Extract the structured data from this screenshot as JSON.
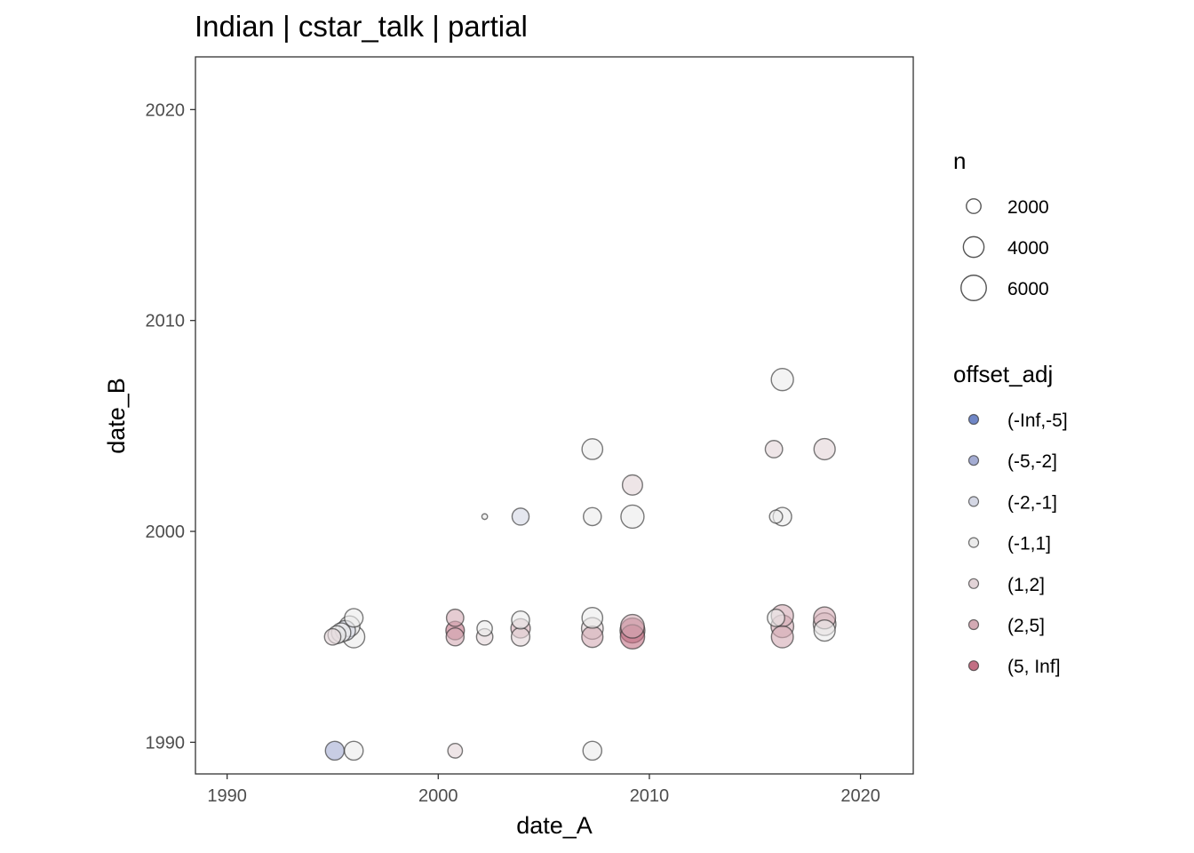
{
  "chart_data": {
    "type": "scatter",
    "title": "Indian | cstar_talk | partial",
    "xlabel": "date_A",
    "ylabel": "date_B",
    "xlim": [
      1988.5,
      2022.5
    ],
    "ylim": [
      1988.5,
      2022.5
    ],
    "x_ticks": [
      "1990",
      "2000",
      "2010",
      "2020"
    ],
    "y_ticks": [
      "1990",
      "2000",
      "2010",
      "2020"
    ],
    "grid": false,
    "legend_position": "right",
    "size_legend": {
      "title": "n",
      "entries": [
        {
          "label": "2000",
          "n": 2000
        },
        {
          "label": "4000",
          "n": 4000
        },
        {
          "label": "6000",
          "n": 6000
        }
      ]
    },
    "color_legend": {
      "title": "offset_adj",
      "entries": [
        {
          "label": "(-Inf,-5]",
          "color": "#6f86c6"
        },
        {
          "label": "(-5,-2]",
          "color": "#a4acd2"
        },
        {
          "label": "(-2,-1]",
          "color": "#d4d7e4"
        },
        {
          "label": "(-1,1]",
          "color": "#ebebeb"
        },
        {
          "label": "(1,2]",
          "color": "#e2d3d7"
        },
        {
          "label": "(2,5]",
          "color": "#d3aab4"
        },
        {
          "label": "(5, Inf]",
          "color": "#c26f84"
        }
      ]
    },
    "points": [
      {
        "x": 1995.1,
        "y": 1989.6,
        "n": 3300,
        "offset": "(-5,-2]"
      },
      {
        "x": 1996.0,
        "y": 1989.6,
        "n": 3300,
        "offset": "(-1,1]"
      },
      {
        "x": 2000.8,
        "y": 1989.6,
        "n": 2000,
        "offset": "(1,2]"
      },
      {
        "x": 2007.3,
        "y": 1989.6,
        "n": 3300,
        "offset": "(-1,1]"
      },
      {
        "x": 1995.0,
        "y": 1995.0,
        "n": 2500,
        "offset": "(1,2]"
      },
      {
        "x": 1995.2,
        "y": 1995.1,
        "n": 3000,
        "offset": "(-1,1]"
      },
      {
        "x": 1995.4,
        "y": 1995.2,
        "n": 3500,
        "offset": "(-1,1]"
      },
      {
        "x": 1995.6,
        "y": 1995.3,
        "n": 3800,
        "offset": "(-2,-1]"
      },
      {
        "x": 1995.8,
        "y": 1995.5,
        "n": 4000,
        "offset": "(-1,1]"
      },
      {
        "x": 1996.0,
        "y": 1995.0,
        "n": 4500,
        "offset": "(-1,1]"
      },
      {
        "x": 1996.0,
        "y": 1995.9,
        "n": 3200,
        "offset": "(-1,1]"
      },
      {
        "x": 2000.8,
        "y": 1995.0,
        "n": 3000,
        "offset": "(2,5]"
      },
      {
        "x": 2000.8,
        "y": 1995.3,
        "n": 3200,
        "offset": "(5, Inf]"
      },
      {
        "x": 2000.8,
        "y": 1995.9,
        "n": 2800,
        "offset": "(2,5]"
      },
      {
        "x": 2002.2,
        "y": 1995.0,
        "n": 2500,
        "offset": "(1,2]"
      },
      {
        "x": 2002.2,
        "y": 1995.4,
        "n": 2200,
        "offset": "(-1,1]"
      },
      {
        "x": 2003.9,
        "y": 1995.0,
        "n": 3200,
        "offset": "(1,2]"
      },
      {
        "x": 2003.9,
        "y": 1995.4,
        "n": 3500,
        "offset": "(2,5]"
      },
      {
        "x": 2003.9,
        "y": 1995.8,
        "n": 3000,
        "offset": "(-1,1]"
      },
      {
        "x": 2007.3,
        "y": 1995.0,
        "n": 4200,
        "offset": "(2,5]"
      },
      {
        "x": 2007.3,
        "y": 1995.4,
        "n": 4400,
        "offset": "(1,2]"
      },
      {
        "x": 2007.3,
        "y": 1995.9,
        "n": 4000,
        "offset": "(-1,1]"
      },
      {
        "x": 2009.2,
        "y": 1995.0,
        "n": 5500,
        "offset": "(5, Inf]"
      },
      {
        "x": 2009.2,
        "y": 1995.3,
        "n": 5800,
        "offset": "(5, Inf]"
      },
      {
        "x": 2009.2,
        "y": 1995.5,
        "n": 5200,
        "offset": "(2,5]"
      },
      {
        "x": 2016.3,
        "y": 1995.0,
        "n": 4500,
        "offset": "(2,5]"
      },
      {
        "x": 2016.3,
        "y": 1995.5,
        "n": 4800,
        "offset": "(2,5]"
      },
      {
        "x": 2016.0,
        "y": 1995.9,
        "n": 2800,
        "offset": "(-1,1]"
      },
      {
        "x": 2016.3,
        "y": 1996.0,
        "n": 4600,
        "offset": "(2,5]"
      },
      {
        "x": 2018.3,
        "y": 1995.3,
        "n": 4200,
        "offset": "(-1,1]"
      },
      {
        "x": 2018.3,
        "y": 1995.6,
        "n": 4800,
        "offset": "(1,2]"
      },
      {
        "x": 2018.3,
        "y": 1995.9,
        "n": 4500,
        "offset": "(2,5]"
      },
      {
        "x": 2002.2,
        "y": 2000.7,
        "n": 300,
        "offset": "(-1,1]"
      },
      {
        "x": 2003.9,
        "y": 2000.7,
        "n": 2700,
        "offset": "(-2,-1]"
      },
      {
        "x": 2007.3,
        "y": 2000.7,
        "n": 3000,
        "offset": "(-1,1]"
      },
      {
        "x": 2009.2,
        "y": 2000.7,
        "n": 5000,
        "offset": "(-1,1]"
      },
      {
        "x": 2009.2,
        "y": 2002.2,
        "n": 3800,
        "offset": "(1,2]"
      },
      {
        "x": 2016.3,
        "y": 2000.7,
        "n": 3200,
        "offset": "(-1,1]"
      },
      {
        "x": 2016.0,
        "y": 2000.7,
        "n": 1600,
        "offset": "(-1,1]"
      },
      {
        "x": 2007.3,
        "y": 2003.9,
        "n": 4000,
        "offset": "(-1,1]"
      },
      {
        "x": 2015.9,
        "y": 2003.9,
        "n": 2800,
        "offset": "(1,2]"
      },
      {
        "x": 2018.3,
        "y": 2003.9,
        "n": 4200,
        "offset": "(1,2]"
      },
      {
        "x": 2016.3,
        "y": 2007.2,
        "n": 4600,
        "offset": "(-1,1]"
      }
    ]
  }
}
